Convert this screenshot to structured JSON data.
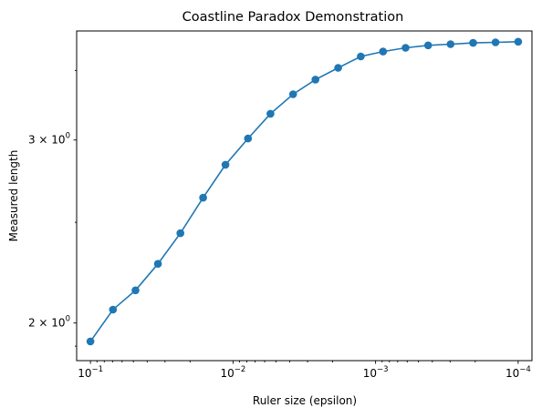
{
  "chart_data": {
    "type": "line",
    "title": "Coastline Paradox Demonstration",
    "xlabel": "Ruler size (epsilon)",
    "ylabel": "Measured length",
    "x_scale": "log",
    "x_inverted": true,
    "y_scale": "log",
    "xlim": [
      0.125,
      8e-05
    ],
    "ylim": [
      1.84,
      3.82
    ],
    "grid": false,
    "marker": "circle",
    "color": "#1f77b4",
    "x_ticks": [
      {
        "mantissa": "10",
        "exp": "−1",
        "value": 0.1
      },
      {
        "mantissa": "10",
        "exp": "−2",
        "value": 0.01
      },
      {
        "mantissa": "10",
        "exp": "−3",
        "value": 0.001
      },
      {
        "mantissa": "10",
        "exp": "−4",
        "value": 0.0001
      }
    ],
    "y_ticks": [
      {
        "coef": "2",
        "base": "10",
        "exp": "0",
        "value": 2
      },
      {
        "coef": "3",
        "base": "10",
        "exp": "0",
        "value": 3
      }
    ],
    "x": [
      0.1,
      0.0695,
      0.0483,
      0.0336,
      0.0234,
      0.0162,
      0.0113,
      0.00785,
      0.00546,
      0.00379,
      0.00264,
      0.00183,
      0.00127,
      0.000886,
      0.000616,
      0.000428,
      0.000298,
      0.000207,
      0.000144,
      0.0001
    ],
    "values": [
      1.92,
      2.06,
      2.15,
      2.28,
      2.44,
      2.64,
      2.84,
      3.01,
      3.18,
      3.32,
      3.43,
      3.52,
      3.61,
      3.65,
      3.68,
      3.7,
      3.71,
      3.72,
      3.725,
      3.73
    ]
  }
}
